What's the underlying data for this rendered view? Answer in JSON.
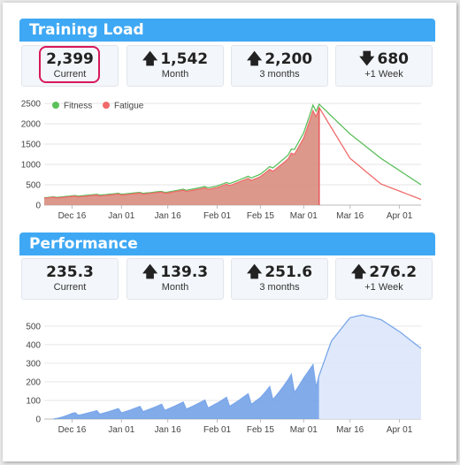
{
  "training_load": {
    "title": "Training Load",
    "stats": [
      {
        "value": "2,399",
        "label": "Current",
        "arrow": ""
      },
      {
        "value": "1,542",
        "label": "Month",
        "arrow": "up"
      },
      {
        "value": "2,200",
        "label": "3 months",
        "arrow": "up"
      },
      {
        "value": "680",
        "label": "+1 Week",
        "arrow": "down"
      }
    ]
  },
  "performance": {
    "title": "Performance",
    "stats": [
      {
        "value": "235.3",
        "label": "Current",
        "arrow": ""
      },
      {
        "value": "139.3",
        "label": "Month",
        "arrow": "up"
      },
      {
        "value": "251.6",
        "label": "3 months",
        "arrow": "up"
      },
      {
        "value": "276.2",
        "label": "+1 Week",
        "arrow": "up"
      }
    ]
  },
  "icons": {
    "up": "arrow-up-icon",
    "down": "arrow-down-icon"
  },
  "colors": {
    "header": "#3fa8f4",
    "fitness": "#5cc05c",
    "fatigue": "#f06b6b",
    "load_fill": "#d98d80",
    "performance_line": "#7aa7ea",
    "performance_fill": "#6c9ce6",
    "highlight": "#d8185a"
  },
  "chart_data": [
    {
      "type": "line",
      "title": "",
      "xlabel": "",
      "ylabel": "",
      "x_tick_labels": [
        "Dec 16",
        "Jan 01",
        "Jan 16",
        "Feb 01",
        "Feb 15",
        "Mar 01",
        "Mar 16",
        "Apr 01"
      ],
      "y_tick_labels": [
        "0",
        "500",
        "1000",
        "1500",
        "2000",
        "2500"
      ],
      "ylim": [
        0,
        2500
      ],
      "xlim": [
        "2014-12-07",
        "2015-04-08"
      ],
      "grid": true,
      "legend": "top-left",
      "today": "2015-03-06",
      "series": [
        {
          "name": "Fitness",
          "color": "#5cc05c",
          "points": [
            [
              "2014-12-07",
              180
            ],
            [
              "2014-12-20",
              240
            ],
            [
              "2015-01-01",
              280
            ],
            [
              "2015-01-16",
              330
            ],
            [
              "2015-02-01",
              470
            ],
            [
              "2015-02-15",
              760
            ],
            [
              "2015-02-24",
              1200
            ],
            [
              "2015-03-01",
              1780
            ],
            [
              "2015-03-04",
              2350
            ],
            [
              "2015-03-06",
              2480
            ],
            [
              "2015-03-16",
              1750
            ],
            [
              "2015-03-26",
              1150
            ],
            [
              "2015-04-08",
              500
            ]
          ]
        },
        {
          "name": "Fatigue",
          "color": "#f06b6b",
          "points": [
            [
              "2014-12-07",
              170
            ],
            [
              "2014-12-20",
              220
            ],
            [
              "2015-01-01",
              260
            ],
            [
              "2015-01-16",
              310
            ],
            [
              "2015-02-01",
              430
            ],
            [
              "2015-02-15",
              700
            ],
            [
              "2015-02-24",
              1100
            ],
            [
              "2015-03-01",
              1650
            ],
            [
              "2015-03-04",
              2200
            ],
            [
              "2015-03-06",
              2399
            ],
            [
              "2015-03-16",
              1150
            ],
            [
              "2015-03-26",
              520
            ],
            [
              "2015-04-08",
              140
            ]
          ]
        }
      ]
    },
    {
      "type": "area",
      "title": "",
      "xlabel": "",
      "ylabel": "",
      "x_tick_labels": [
        "Dec 16",
        "Jan 01",
        "Jan 16",
        "Feb 01",
        "Feb 15",
        "Mar 01",
        "Mar 16",
        "Apr 01"
      ],
      "y_tick_labels": [
        "0",
        "100",
        "200",
        "300",
        "400",
        "500"
      ],
      "ylim": [
        0,
        580
      ],
      "xlim": [
        "2014-12-07",
        "2015-04-08"
      ],
      "grid": true,
      "today": "2015-03-06",
      "series": [
        {
          "name": "",
          "color": "#6c9ce6",
          "points": [
            [
              "2014-12-10",
              0
            ],
            [
              "2014-12-16",
              25
            ],
            [
              "2015-01-01",
              45
            ],
            [
              "2015-01-16",
              65
            ],
            [
              "2015-02-01",
              85
            ],
            [
              "2015-02-15",
              115
            ],
            [
              "2015-02-24",
              180
            ],
            [
              "2015-03-01",
              220
            ],
            [
              "2015-03-06",
              235
            ],
            [
              "2015-03-10",
              420
            ],
            [
              "2015-03-16",
              545
            ],
            [
              "2015-03-20",
              560
            ],
            [
              "2015-03-26",
              535
            ],
            [
              "2015-04-01",
              470
            ],
            [
              "2015-04-08",
              380
            ]
          ]
        }
      ]
    }
  ]
}
